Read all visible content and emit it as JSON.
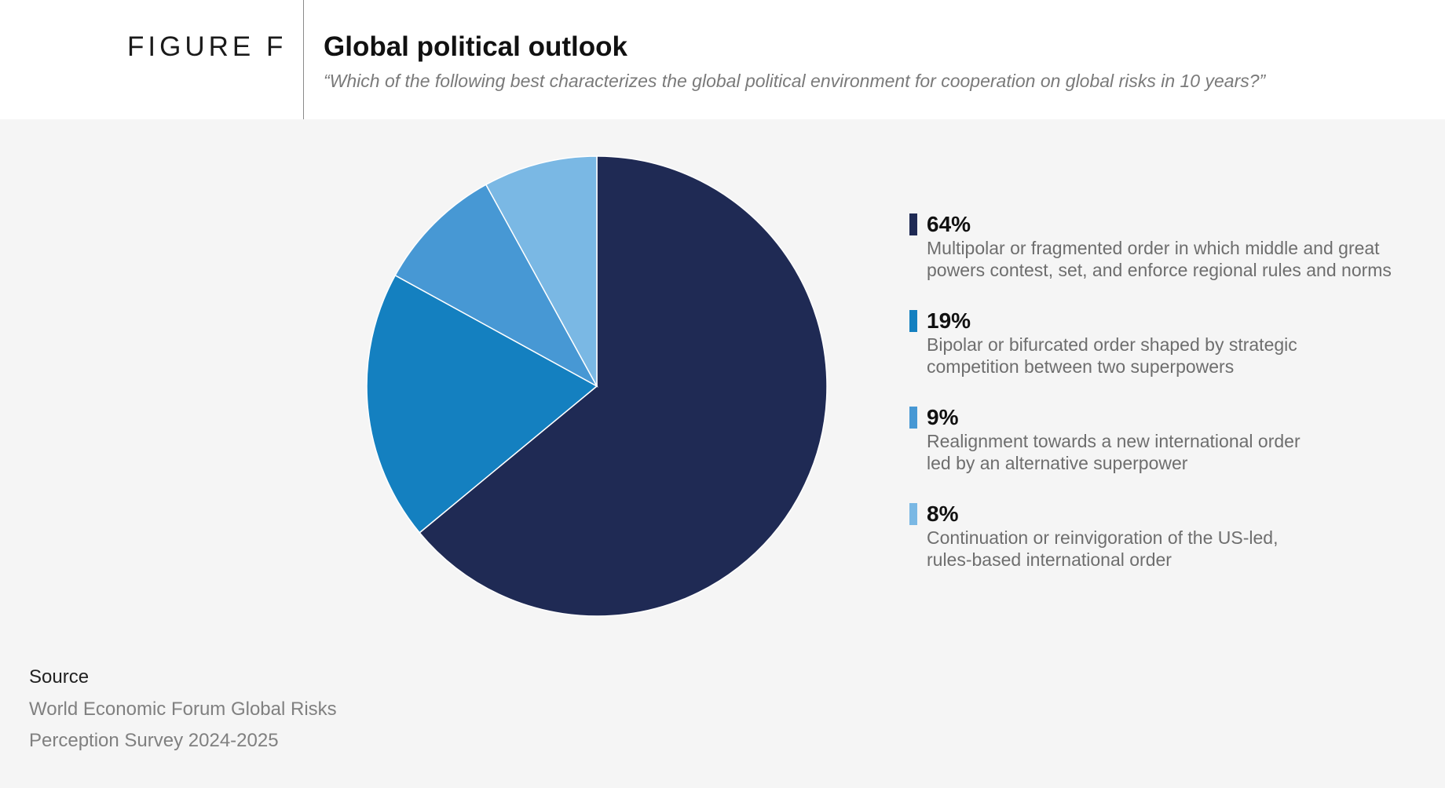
{
  "header": {
    "figure_label": "FIGURE F",
    "title": "Global political outlook",
    "subtitle": "“Which of the following best characterizes the global political environment for cooperation on global risks in 10 years?”"
  },
  "chart_data": {
    "type": "pie",
    "slices": [
      {
        "value": 64,
        "label": "64%",
        "description_lines": [
          "Multipolar or fragmented order in which middle and great",
          "powers contest, set, and enforce regional rules and norms"
        ],
        "color": "#1f2a54"
      },
      {
        "value": 19,
        "label": "19%",
        "description_lines": [
          "Bipolar or bifurcated order shaped by strategic",
          "competition between two superpowers"
        ],
        "color": "#1480c0"
      },
      {
        "value": 9,
        "label": "9%",
        "description_lines": [
          "Realignment towards a new international order",
          "led by an alternative superpower"
        ],
        "color": "#4798d4"
      },
      {
        "value": 8,
        "label": "8%",
        "description_lines": [
          "Continuation or reinvigoration of the US-led,",
          "rules-based international order"
        ],
        "color": "#7ab8e4"
      }
    ],
    "legend_position": "right"
  },
  "source": {
    "label": "Source",
    "lines": [
      "World Economic Forum Global Risks",
      "Perception Survey 2024-2025"
    ]
  }
}
